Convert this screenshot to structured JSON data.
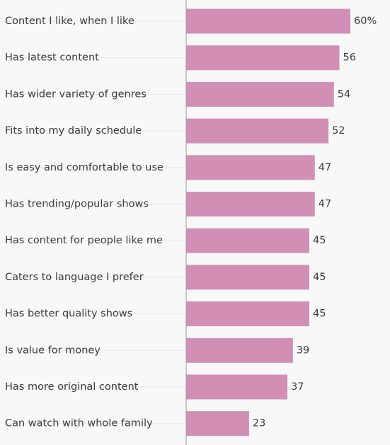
{
  "chart_data": {
    "type": "bar",
    "orientation": "horizontal",
    "categories": [
      "Content I like, when I like",
      "Has latest content",
      "Has wider variety of genres",
      "Fits into my daily schedule",
      "Is easy and comfortable to use",
      "Has trending/popular shows",
      "Has content for people like me",
      "Caters to language I prefer",
      "Has better quality shows",
      "Is value for money",
      "Has more original content",
      "Can watch with whole family"
    ],
    "values": [
      60,
      56,
      54,
      52,
      47,
      47,
      45,
      45,
      45,
      39,
      37,
      23
    ],
    "value_labels": [
      "60%",
      "56",
      "54",
      "52",
      "47",
      "47",
      "45",
      "45",
      "45",
      "39",
      "37",
      "23"
    ],
    "xlim": [
      0,
      60
    ],
    "bar_color": "#d18fb6",
    "baseline_color": "#9a9a9a",
    "guide_color": "#e8e8e8",
    "grid": false
  }
}
